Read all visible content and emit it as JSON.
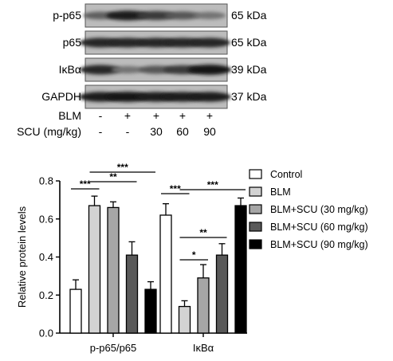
{
  "blot": {
    "rows": [
      {
        "label": "p-p65",
        "kda": "65 kDa",
        "intensity": [
          0.55,
          0.9,
          0.75,
          0.6,
          0.45
        ]
      },
      {
        "label": "p65",
        "kda": "65 kDa",
        "intensity": [
          0.85,
          0.85,
          0.85,
          0.85,
          0.85
        ]
      },
      {
        "label": "IκBα",
        "kda": "39 kDa",
        "intensity": [
          0.85,
          0.45,
          0.6,
          0.75,
          0.95
        ]
      },
      {
        "label": "GAPDH",
        "kda": "37 kDa",
        "intensity": [
          0.9,
          0.95,
          0.9,
          0.9,
          0.9
        ]
      }
    ],
    "conditions": [
      {
        "label": "BLM",
        "values": [
          "-",
          "+",
          "+",
          "+",
          "+"
        ]
      },
      {
        "label": "SCU (mg/kg)",
        "values": [
          "-",
          "-",
          "30",
          "60",
          "90"
        ]
      }
    ]
  },
  "chart_data": {
    "type": "bar",
    "ylabel": "Relative protein levels",
    "ylim": [
      0,
      0.8
    ],
    "yticks": [
      "0.0",
      "0.2",
      "0.4",
      "0.6",
      "0.8"
    ],
    "categories": [
      "p-p65/p65",
      "IκBα"
    ],
    "series": [
      {
        "name": "Control",
        "values": [
          0.23,
          0.62
        ],
        "errors": [
          0.05,
          0.06
        ],
        "color": "#ffffff"
      },
      {
        "name": "BLM",
        "values": [
          0.67,
          0.14
        ],
        "errors": [
          0.05,
          0.03
        ],
        "color": "#d3d3d3"
      },
      {
        "name": "BLM+SCU (30 mg/kg)",
        "values": [
          0.66,
          0.29
        ],
        "errors": [
          0.03,
          0.07
        ],
        "color": "#a6a6a6"
      },
      {
        "name": "BLM+SCU (60 mg/kg)",
        "values": [
          0.41,
          0.41
        ],
        "errors": [
          0.07,
          0.06
        ],
        "color": "#595959"
      },
      {
        "name": "BLM+SCU (90 mg/kg)",
        "values": [
          0.23,
          0.67
        ],
        "errors": [
          0.04,
          0.04
        ],
        "color": "#000000"
      }
    ],
    "significance": [
      {
        "group": 0,
        "from": 0,
        "to": 1,
        "label": "***"
      },
      {
        "group": 0,
        "from": 1,
        "to": 3,
        "label": "**"
      },
      {
        "group": 0,
        "from": 1,
        "to": 4,
        "label": "***"
      },
      {
        "group": 1,
        "from": 0,
        "to": 1,
        "label": "***"
      },
      {
        "group": 1,
        "from": 1,
        "to": 4,
        "label": "***"
      },
      {
        "group": 1,
        "from": 1,
        "to": 3,
        "label": "**"
      },
      {
        "group": 1,
        "from": 1,
        "to": 2,
        "label": "*"
      }
    ],
    "legend_position": "top-right"
  }
}
